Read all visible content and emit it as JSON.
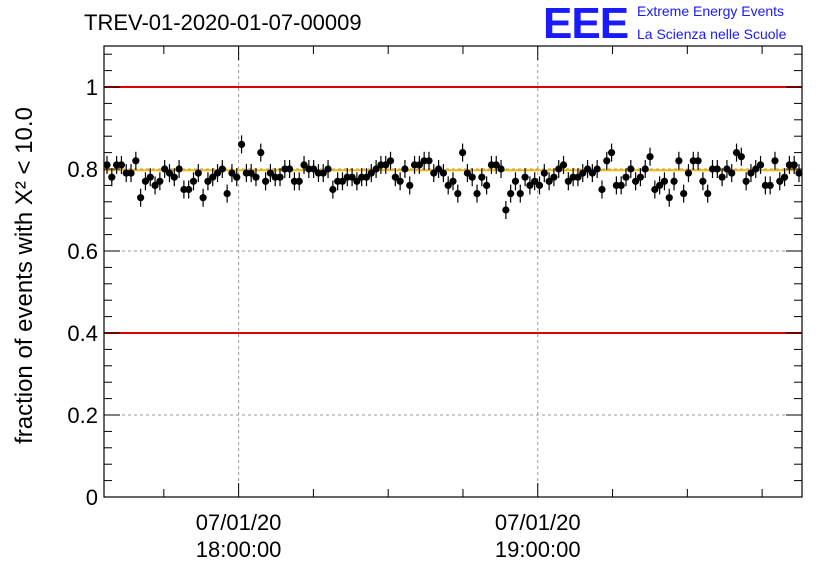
{
  "header": {
    "title": "TREV-01-2020-01-07-00009",
    "logo_mark": "EEE",
    "logo_line1": "Extreme Energy Events",
    "logo_line2": "La Scienza nelle Scuole"
  },
  "chart_data": {
    "type": "scatter",
    "title": "TREV-01-2020-01-07-00009",
    "ylabel": "fraction of events with X² < 10.0",
    "ylim": [
      0,
      1.1
    ],
    "yticks": [
      0,
      0.2,
      0.4,
      0.6,
      0.8,
      1
    ],
    "ytick_labels": [
      "0",
      "0.2",
      "0.4",
      "0.6",
      "0.8",
      "1"
    ],
    "x_time_start": "17:33",
    "x_time_end": "19:53",
    "x_major_ticks": [
      {
        "time": "18:00",
        "label_date": "07/01/20",
        "label_time": "18:00:00"
      },
      {
        "time": "19:00",
        "label_date": "07/01/20",
        "label_time": "19:00:00"
      }
    ],
    "x_minor_interval_minutes": 15,
    "grid": true,
    "reference_lines": [
      {
        "y": 1.0,
        "color": "#e00000"
      },
      {
        "y": 0.4,
        "color": "#e00000"
      },
      {
        "y": 0.797,
        "color": "#f5b800"
      }
    ],
    "series": [
      {
        "marker_color": "#000000",
        "y_error": 0.022,
        "values": [
          0.81,
          0.78,
          0.81,
          0.81,
          0.79,
          0.79,
          0.82,
          0.73,
          0.77,
          0.78,
          0.76,
          0.77,
          0.8,
          0.79,
          0.78,
          0.8,
          0.75,
          0.75,
          0.77,
          0.79,
          0.73,
          0.77,
          0.78,
          0.79,
          0.8,
          0.74,
          0.79,
          0.78,
          0.86,
          0.79,
          0.79,
          0.78,
          0.84,
          0.77,
          0.79,
          0.78,
          0.78,
          0.8,
          0.8,
          0.77,
          0.77,
          0.81,
          0.8,
          0.8,
          0.79,
          0.79,
          0.8,
          0.75,
          0.77,
          0.77,
          0.78,
          0.78,
          0.77,
          0.78,
          0.78,
          0.79,
          0.8,
          0.81,
          0.81,
          0.82,
          0.78,
          0.77,
          0.8,
          0.76,
          0.81,
          0.81,
          0.82,
          0.82,
          0.79,
          0.8,
          0.79,
          0.76,
          0.77,
          0.74,
          0.84,
          0.79,
          0.78,
          0.74,
          0.78,
          0.76,
          0.81,
          0.81,
          0.8,
          0.7,
          0.74,
          0.77,
          0.74,
          0.78,
          0.76,
          0.77,
          0.76,
          0.79,
          0.77,
          0.78,
          0.8,
          0.81,
          0.77,
          0.78,
          0.78,
          0.79,
          0.8,
          0.79,
          0.8,
          0.75,
          0.82,
          0.84,
          0.76,
          0.76,
          0.78,
          0.8,
          0.77,
          0.78,
          0.8,
          0.83,
          0.75,
          0.76,
          0.77,
          0.73,
          0.77,
          0.82,
          0.74,
          0.79,
          0.82,
          0.82,
          0.77,
          0.74,
          0.8,
          0.8,
          0.78,
          0.8,
          0.79,
          0.84,
          0.83,
          0.77,
          0.79,
          0.8,
          0.81,
          0.76,
          0.76,
          0.82,
          0.77,
          0.78,
          0.81,
          0.81,
          0.79
        ]
      }
    ]
  }
}
